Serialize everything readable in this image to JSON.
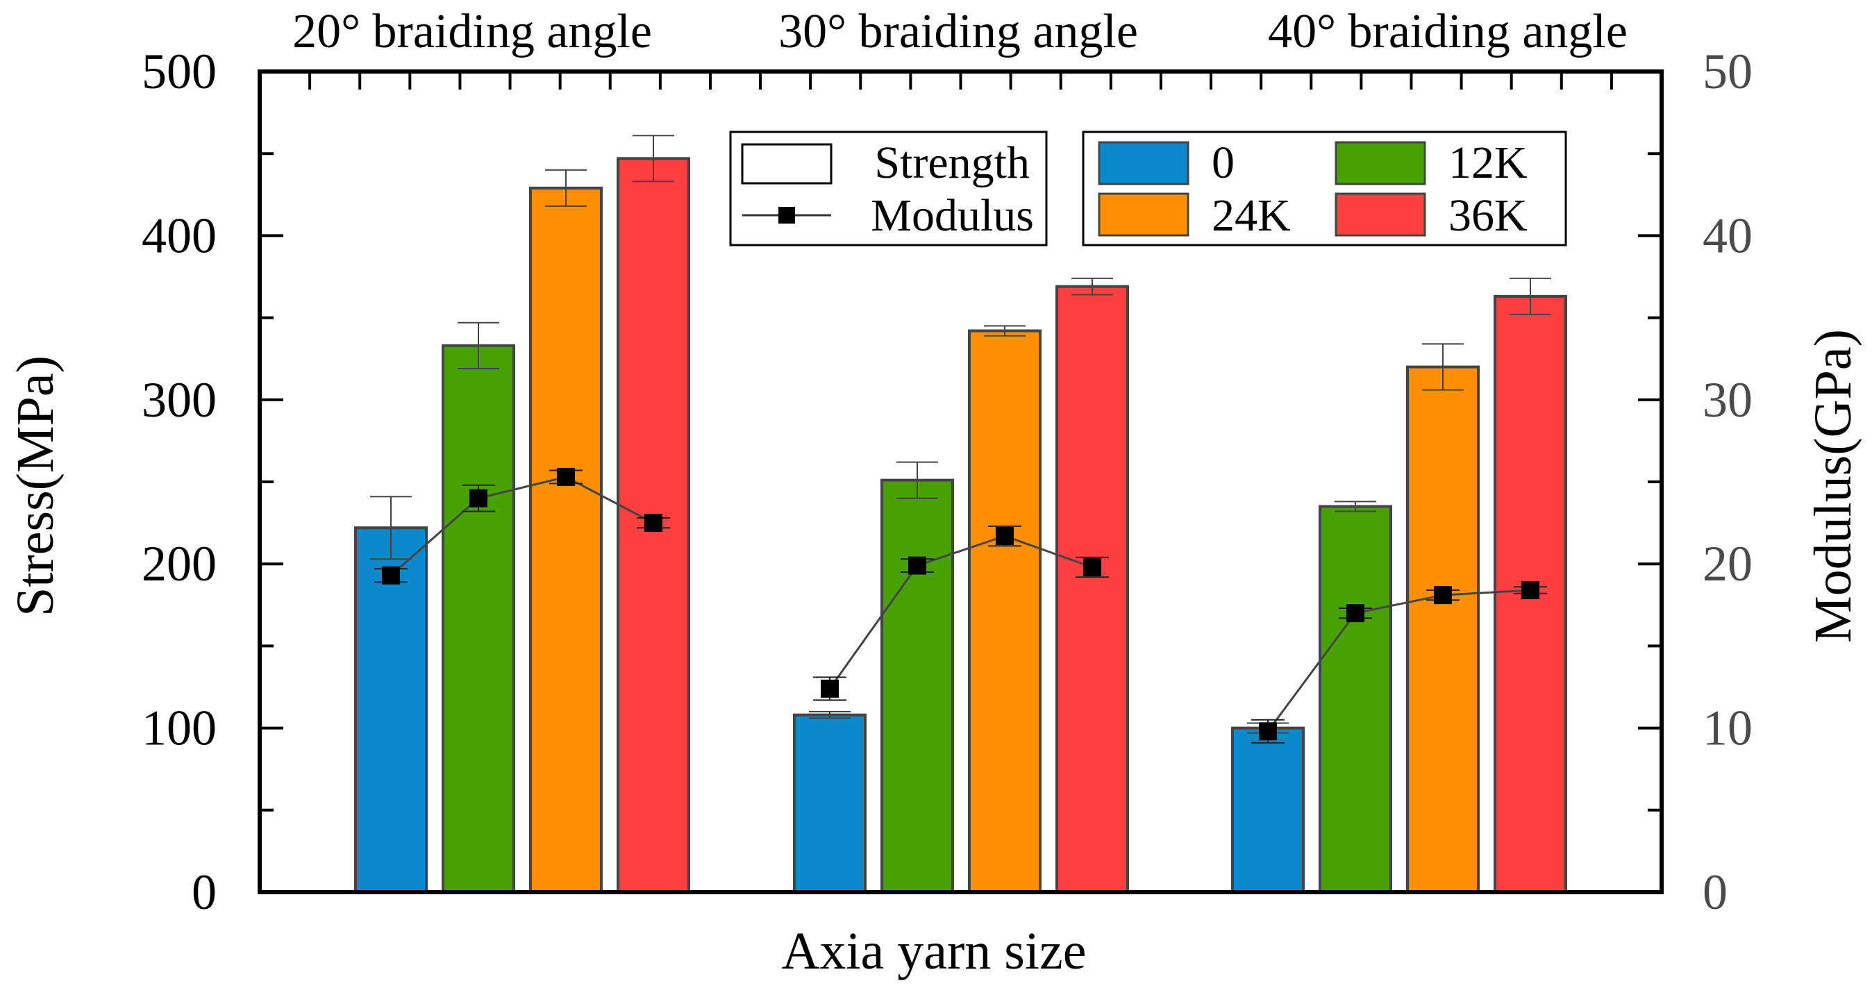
{
  "chart_data": {
    "type": "bar",
    "groups": [
      "20° braiding angle",
      "30° braiding angle",
      "40° braiding angle"
    ],
    "xlabel": "Axia yarn size",
    "ylabel_left": "Stress(MPa)",
    "ylabel_right": "Modulus(GPa)",
    "ylim_left": [
      0,
      500
    ],
    "ylim_right": [
      0,
      50
    ],
    "yticks_left": [
      "0",
      "100",
      "200",
      "300",
      "400",
      "500"
    ],
    "yticks_right": [
      "0",
      "10",
      "20",
      "30",
      "40",
      "50"
    ],
    "series": [
      {
        "name": "0",
        "color": "#0a8acd",
        "strength": [
          222,
          108,
          100
        ],
        "strength_err": [
          19,
          2,
          3
        ],
        "modulus": [
          19.3,
          12.4,
          9.8
        ],
        "modulus_err": [
          0.4,
          0.7,
          0.7
        ]
      },
      {
        "name": "12K",
        "color": "#48a204",
        "strength": [
          333,
          251,
          235
        ],
        "strength_err": [
          14,
          11,
          3
        ],
        "modulus": [
          24.0,
          19.9,
          17.0
        ],
        "modulus_err": [
          0.8,
          0.4,
          0.3
        ]
      },
      {
        "name": "24K",
        "color": "#fe9000",
        "strength": [
          429,
          342,
          320
        ],
        "strength_err": [
          11,
          3,
          14
        ],
        "modulus": [
          25.3,
          21.7,
          18.1
        ],
        "modulus_err": [
          0.4,
          0.6,
          0.3
        ]
      },
      {
        "name": "36K",
        "color": "#fe4040",
        "strength": [
          447,
          369,
          363
        ],
        "strength_err": [
          14,
          5,
          11
        ],
        "modulus": [
          22.5,
          19.8,
          18.4
        ],
        "modulus_err": [
          0.3,
          0.6,
          0.2
        ]
      }
    ],
    "legend_type": {
      "strength_label": "Strength",
      "modulus_label": "Modulus"
    },
    "grid": false
  }
}
